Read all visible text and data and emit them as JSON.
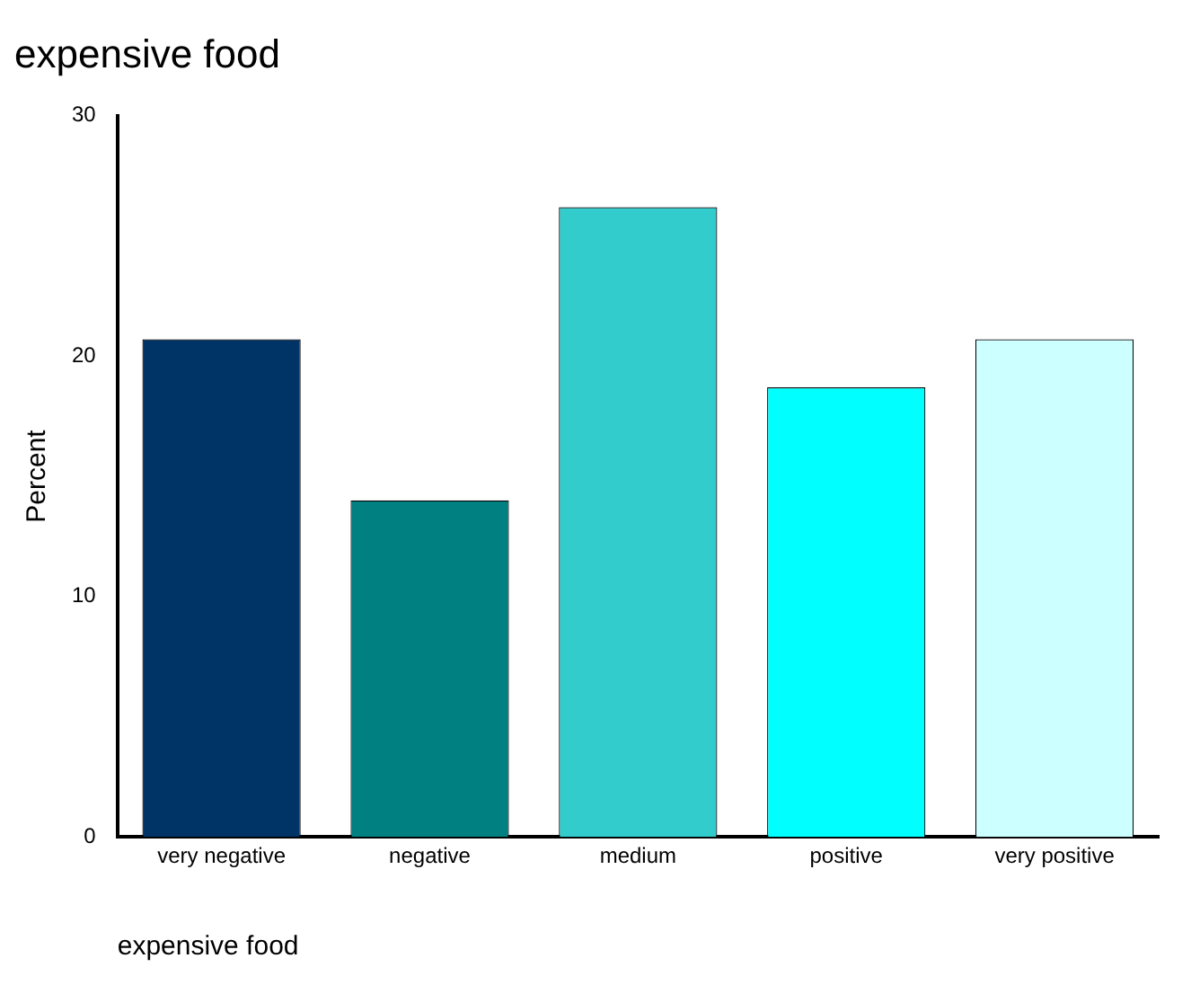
{
  "chart_data": {
    "type": "bar",
    "title": "expensive food",
    "xlabel": "expensive food",
    "ylabel": "Percent",
    "categories": [
      "very negative",
      "negative",
      "medium",
      "positive",
      "very positive"
    ],
    "values": [
      20.7,
      14.0,
      26.2,
      18.7,
      20.7
    ],
    "colors": [
      "#003366",
      "#008080",
      "#33cccc",
      "#00ffff",
      "#ccffff"
    ],
    "ylim": [
      0,
      30
    ],
    "yticks": [
      0,
      10,
      20,
      30
    ],
    "grid": false,
    "legend": false
  }
}
